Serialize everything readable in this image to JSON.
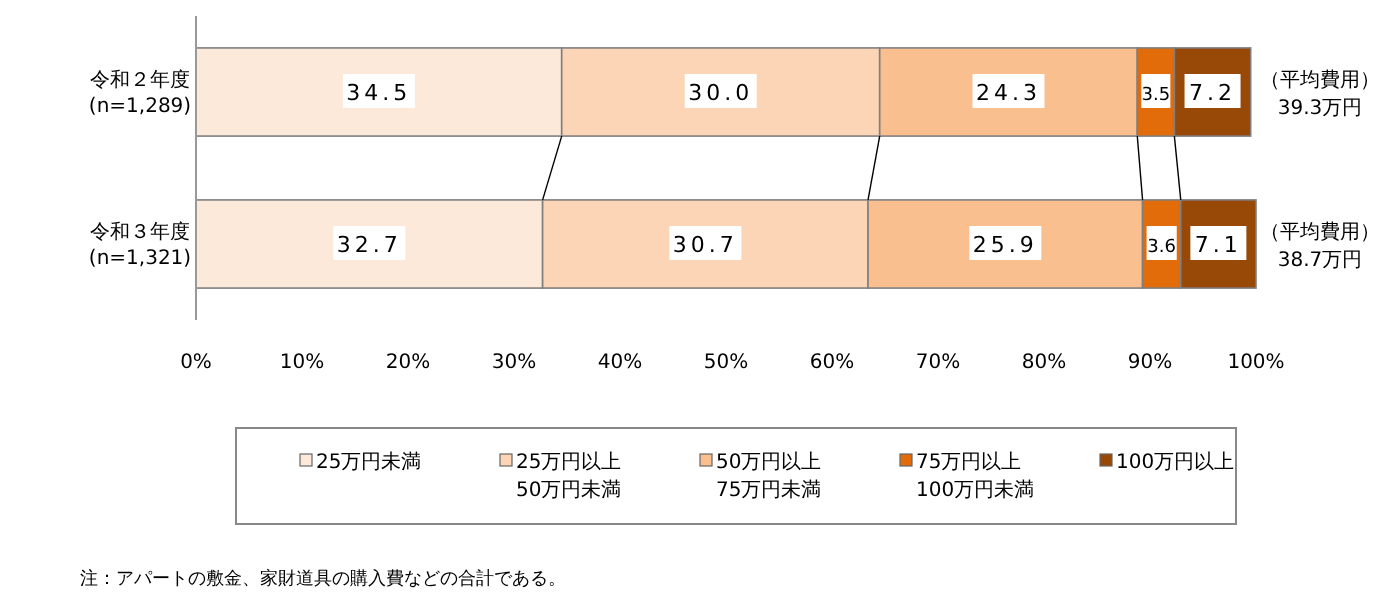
{
  "chart_data": {
    "type": "bar",
    "orientation": "horizontal",
    "stacked": true,
    "categories": [
      "令和２年度\n(n=1,289)",
      "令和３年度\n(n=1,321)"
    ],
    "series": [
      {
        "name": "25万円未満",
        "color": "#fde9d9",
        "values": [
          34.5,
          32.7
        ],
        "value_labels": [
          "34.5",
          "32.7"
        ]
      },
      {
        "name": "25万円以上\n50万円未満",
        "color": "#fbd5b5",
        "values": [
          30.0,
          30.7
        ],
        "value_labels": [
          "30.0",
          "30.7"
        ]
      },
      {
        "name": "50万円以上\n75万円未満",
        "color": "#fabf8f",
        "values": [
          24.3,
          25.9
        ],
        "value_labels": [
          "24.3",
          "25.9"
        ]
      },
      {
        "name": "75万円以上\n100万円未満",
        "color": "#e26b0a",
        "values": [
          3.5,
          3.6
        ],
        "value_labels": [
          "3.5",
          "3.6"
        ]
      },
      {
        "name": "100万円以上",
        "color": "#984807",
        "values": [
          7.2,
          7.1
        ],
        "value_labels": [
          "7.2",
          "7.1"
        ]
      }
    ],
    "xlim": [
      0,
      100
    ],
    "xticks": [
      {
        "value": 0,
        "label": "0%"
      },
      {
        "value": 10,
        "label": "10%"
      },
      {
        "value": 20,
        "label": "20%"
      },
      {
        "value": 30,
        "label": "30%"
      },
      {
        "value": 40,
        "label": "40%"
      },
      {
        "value": 50,
        "label": "50%"
      },
      {
        "value": 60,
        "label": "60%"
      },
      {
        "value": 70,
        "label": "70%"
      },
      {
        "value": 80,
        "label": "80%"
      },
      {
        "value": 90,
        "label": "90%"
      },
      {
        "value": 100,
        "label": "100%"
      }
    ],
    "grid": false,
    "legend": "bottom",
    "annotations": [
      "（平均費用）\n39.3万円",
      "（平均費用）\n38.7万円",
      "注：アパートの敷金、家財道具の購入費などの合計である。"
    ]
  }
}
